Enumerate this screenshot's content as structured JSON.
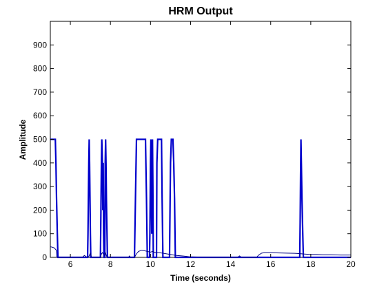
{
  "chart_data": {
    "type": "line",
    "title": "HRM Output",
    "xlabel": "Time (seconds)",
    "ylabel": "Amplitude",
    "xlim": [
      5,
      20
    ],
    "ylim": [
      0,
      1000
    ],
    "x_ticks": [
      6,
      8,
      10,
      12,
      14,
      16,
      18,
      20
    ],
    "y_ticks": [
      0,
      100,
      200,
      300,
      400,
      500,
      600,
      700,
      800,
      900
    ],
    "grid": false,
    "series": [
      {
        "color": "#0000cc",
        "width": 2.2,
        "points": [
          [
            5.0,
            500
          ],
          [
            5.25,
            500
          ],
          [
            5.28,
            400
          ],
          [
            5.31,
            250
          ],
          [
            5.35,
            100
          ],
          [
            5.38,
            0
          ],
          [
            6.86,
            0
          ],
          [
            6.88,
            100
          ],
          [
            6.9,
            250
          ],
          [
            6.92,
            400
          ],
          [
            6.94,
            500
          ],
          [
            6.96,
            400
          ],
          [
            6.98,
            250
          ],
          [
            7.0,
            100
          ],
          [
            7.02,
            0
          ],
          [
            7.5,
            0
          ],
          [
            7.52,
            150
          ],
          [
            7.55,
            400
          ],
          [
            7.57,
            500
          ],
          [
            7.6,
            400
          ],
          [
            7.62,
            200
          ],
          [
            7.64,
            400
          ],
          [
            7.66,
            100
          ],
          [
            7.68,
            0
          ],
          [
            7.72,
            0
          ],
          [
            7.74,
            400
          ],
          [
            7.76,
            500
          ],
          [
            7.78,
            400
          ],
          [
            7.8,
            250
          ],
          [
            7.83,
            100
          ],
          [
            7.85,
            0
          ],
          [
            9.2,
            0
          ],
          [
            9.25,
            250
          ],
          [
            9.3,
            500
          ],
          [
            9.75,
            500
          ],
          [
            9.8,
            250
          ],
          [
            9.84,
            0
          ],
          [
            9.95,
            0
          ],
          [
            9.97,
            100
          ],
          [
            10.0,
            400
          ],
          [
            10.02,
            500
          ],
          [
            10.04,
            300
          ],
          [
            10.06,
            100
          ],
          [
            10.08,
            400
          ],
          [
            10.1,
            500
          ],
          [
            10.12,
            300
          ],
          [
            10.14,
            0
          ],
          [
            10.3,
            0
          ],
          [
            10.32,
            400
          ],
          [
            10.36,
            500
          ],
          [
            10.55,
            500
          ],
          [
            10.58,
            250
          ],
          [
            10.62,
            0
          ],
          [
            10.95,
            0
          ],
          [
            10.98,
            250
          ],
          [
            11.0,
            400
          ],
          [
            11.04,
            500
          ],
          [
            11.12,
            500
          ],
          [
            11.16,
            400
          ],
          [
            11.2,
            250
          ],
          [
            11.24,
            0
          ],
          [
            17.45,
            0
          ],
          [
            17.47,
            150
          ],
          [
            17.49,
            350
          ],
          [
            17.51,
            500
          ],
          [
            17.53,
            400
          ],
          [
            17.56,
            250
          ],
          [
            17.6,
            100
          ],
          [
            17.63,
            0
          ],
          [
            20.0,
            0
          ]
        ]
      },
      {
        "color": "#000080",
        "width": 1,
        "points": [
          [
            5.0,
            45
          ],
          [
            5.1,
            43
          ],
          [
            5.2,
            40
          ],
          [
            5.3,
            30
          ],
          [
            5.33,
            0
          ],
          [
            6.6,
            0
          ],
          [
            6.7,
            8
          ],
          [
            6.8,
            2
          ],
          [
            6.9,
            0
          ],
          [
            7.0,
            18
          ],
          [
            7.05,
            2
          ],
          [
            7.1,
            0
          ],
          [
            7.5,
            0
          ],
          [
            7.55,
            14
          ],
          [
            7.6,
            20
          ],
          [
            7.7,
            8
          ],
          [
            7.75,
            20
          ],
          [
            7.8,
            6
          ],
          [
            7.85,
            0
          ],
          [
            8.9,
            0
          ],
          [
            8.95,
            6
          ],
          [
            9.0,
            0
          ],
          [
            9.2,
            0
          ],
          [
            9.3,
            15
          ],
          [
            9.4,
            25
          ],
          [
            9.55,
            30
          ],
          [
            9.7,
            28
          ],
          [
            9.9,
            24
          ],
          [
            10.0,
            22
          ],
          [
            10.1,
            25
          ],
          [
            10.25,
            20
          ],
          [
            10.4,
            20
          ],
          [
            10.6,
            18
          ],
          [
            10.8,
            15
          ],
          [
            11.0,
            12
          ],
          [
            11.3,
            8
          ],
          [
            11.6,
            6
          ],
          [
            11.8,
            4
          ],
          [
            12.0,
            2
          ],
          [
            12.5,
            1
          ],
          [
            13.0,
            0
          ],
          [
            14.35,
            0
          ],
          [
            14.4,
            3
          ],
          [
            14.45,
            6
          ],
          [
            14.5,
            2
          ],
          [
            14.6,
            0
          ],
          [
            15.3,
            0
          ],
          [
            15.4,
            10
          ],
          [
            15.55,
            18
          ],
          [
            15.7,
            20
          ],
          [
            16.0,
            20
          ],
          [
            16.3,
            19
          ],
          [
            16.8,
            18
          ],
          [
            17.2,
            17
          ],
          [
            17.4,
            16
          ],
          [
            17.7,
            14
          ],
          [
            18.0,
            12
          ],
          [
            18.3,
            12
          ],
          [
            18.6,
            11
          ],
          [
            19.0,
            11
          ],
          [
            19.5,
            10
          ],
          [
            20.0,
            10
          ]
        ]
      }
    ]
  }
}
